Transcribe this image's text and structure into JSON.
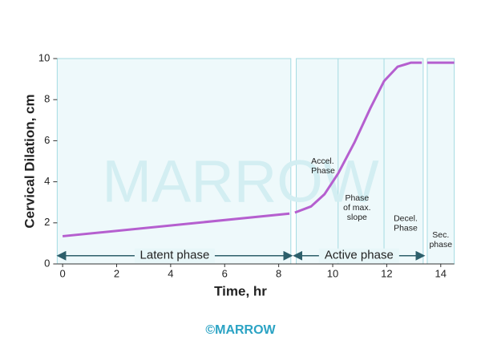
{
  "chart_data": {
    "type": "line",
    "xlabel": "Time, hr",
    "ylabel": "Cervical Dilation, cm",
    "x": [
      0,
      8.4,
      8.5,
      8.6,
      9.2,
      9.7,
      10.2,
      10.8,
      11.4,
      11.9,
      12.4,
      12.9,
      13.3,
      13.4,
      13.5,
      14.5
    ],
    "series": [
      {
        "color": "#b55fcf",
        "values": [
          1.35,
          2.45,
          null,
          2.5,
          2.8,
          3.4,
          4.4,
          5.9,
          7.6,
          8.9,
          9.6,
          9.8,
          9.8,
          null,
          9.8,
          9.8
        ]
      }
    ],
    "xlim": [
      -0.3,
      14.6
    ],
    "ylim": [
      0,
      10
    ],
    "xticks": [
      0,
      2,
      4,
      6,
      8,
      10,
      12,
      14
    ],
    "yticks": [
      0,
      2,
      4,
      6,
      8,
      10
    ],
    "phases": [
      "Latent phase",
      "Active phase"
    ],
    "annotations": [
      [
        "Accel.",
        "Phase"
      ],
      [
        "Phase",
        "of max.",
        "slope"
      ],
      [
        "Decel.",
        "Phase"
      ],
      [
        "Sec.",
        "phase"
      ]
    ],
    "watermark": "MARROW",
    "footer": "©MARROW"
  }
}
